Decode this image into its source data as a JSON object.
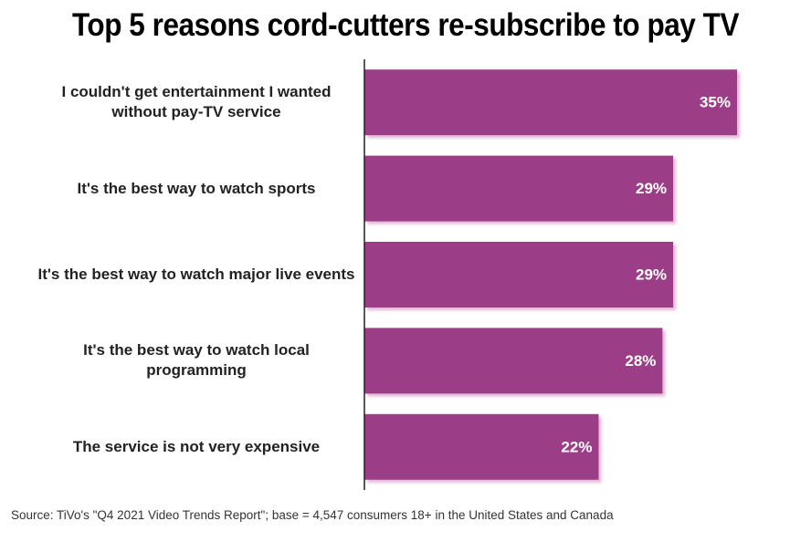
{
  "chart_data": {
    "type": "bar",
    "orientation": "horizontal",
    "title": "Top 5 reasons cord-cutters re-subscribe to pay TV",
    "categories": [
      "I couldn't get entertainment I wanted without pay-TV service",
      "It's the best way to watch sports",
      "It's the best way to watch major live events",
      "It's the best way to watch local programming",
      "The service is not very expensive"
    ],
    "values": [
      35,
      29,
      29,
      28,
      22
    ],
    "value_labels": [
      "35%",
      "29%",
      "29%",
      "28%",
      "22%"
    ],
    "color": "#9b3c87",
    "source": "Source: TiVo's \"Q4 2021 Video Trends Report\"; base = 4,547 consumers 18+ in the United States and Canada"
  }
}
